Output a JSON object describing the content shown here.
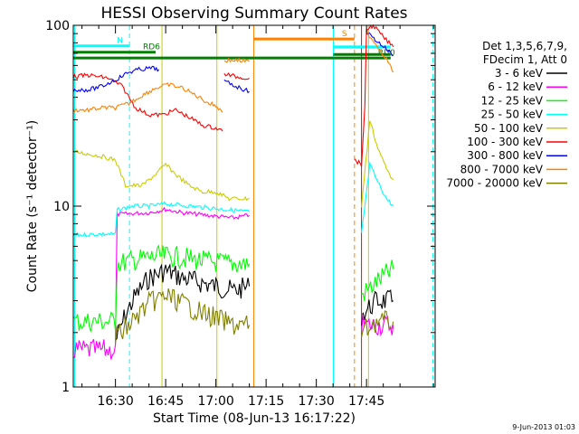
{
  "chart_data": {
    "type": "line",
    "title": "HESSI Observing Summary Count Rates",
    "ylabel": "Count Rate (s⁻¹ detector⁻¹)",
    "xlabel": "Start Time (08-Jun-13 16:17:22)",
    "footer_date": "9-Jun-2013 01:03",
    "y_scale": "log",
    "ylim": [
      1,
      100
    ],
    "xlim_min": [
      17.4,
      125.5
    ],
    "x_ticks": [
      {
        "min": 30,
        "label": "16:30"
      },
      {
        "min": 45,
        "label": "16:45"
      },
      {
        "min": 60,
        "label": "17:00"
      },
      {
        "min": 75,
        "label": "17:15"
      },
      {
        "min": 90,
        "label": "17:30"
      },
      {
        "min": 105,
        "label": "17:45"
      }
    ],
    "y_ticks": [
      {
        "v": 1,
        "label": "1"
      },
      {
        "v": 10,
        "label": "10"
      },
      {
        "v": 100,
        "label": "100"
      }
    ],
    "legend_title": [
      "Det 1,3,5,6,7,9,",
      "FDecim 1, Att 0"
    ],
    "legend_position": "right",
    "series": [
      {
        "name": "3 - 6 keV",
        "color": "#000000",
        "segments": [
          [
            [
              30,
              1.8
            ],
            [
              33,
              2.5
            ],
            [
              36,
              3.2
            ],
            [
              40,
              4.0
            ],
            [
              45,
              4.4
            ],
            [
              50,
              4.0
            ],
            [
              55,
              3.8
            ],
            [
              60,
              3.6
            ],
            [
              65,
              3.4
            ],
            [
              70,
              3.6
            ]
          ],
          [
            [
              103.5,
              2.5
            ],
            [
              108,
              3.0
            ],
            [
              113,
              3.0
            ]
          ]
        ]
      },
      {
        "name": "6 - 12 keV",
        "color": "#ff00ff",
        "segments": [
          [
            [
              17.4,
              1.6
            ],
            [
              30,
              1.6
            ],
            [
              30.5,
              9.0
            ],
            [
              40,
              9.2
            ],
            [
              45,
              9.6
            ],
            [
              50,
              9.2
            ],
            [
              55,
              9.0
            ],
            [
              60,
              8.8
            ],
            [
              65,
              8.6
            ],
            [
              70,
              8.9
            ]
          ],
          [
            [
              103.5,
              2.2
            ],
            [
              108,
              2.2
            ],
            [
              113,
              2.2
            ]
          ]
        ]
      },
      {
        "name": "12 - 25 keV",
        "color": "#00ff00",
        "segments": [
          [
            [
              17.4,
              2.3
            ],
            [
              30,
              2.3
            ],
            [
              30.5,
              4.8
            ],
            [
              35,
              5.0
            ],
            [
              40,
              5.2
            ],
            [
              45,
              5.3
            ],
            [
              50,
              5.2
            ],
            [
              55,
              5.0
            ],
            [
              60,
              4.9
            ],
            [
              65,
              4.8
            ],
            [
              70,
              4.8
            ]
          ],
          [
            [
              103.5,
              3.2
            ],
            [
              108,
              3.8
            ],
            [
              113,
              4.5
            ]
          ]
        ]
      },
      {
        "name": "25 - 50 keV",
        "color": "#00ffff",
        "segments": [
          [
            [
              17.4,
              6.9
            ],
            [
              25,
              7.0
            ],
            [
              30,
              7.0
            ],
            [
              30.5,
              9.5
            ],
            [
              35,
              10.0
            ],
            [
              40,
              10.0
            ],
            [
              45,
              10.3
            ],
            [
              50,
              10.1
            ],
            [
              55,
              9.9
            ],
            [
              60,
              9.7
            ],
            [
              65,
              9.5
            ],
            [
              70,
              9.3
            ]
          ],
          [
            [
              103.5,
              7.0
            ],
            [
              106,
              17
            ],
            [
              108,
              14
            ],
            [
              111,
              11
            ],
            [
              113,
              10
            ]
          ]
        ]
      },
      {
        "name": "50 - 100 keV",
        "color": "#cccc00",
        "segments": [
          [
            [
              17.4,
              20
            ],
            [
              25,
              19
            ],
            [
              30,
              18
            ],
            [
              33,
              13
            ],
            [
              38,
              13
            ],
            [
              42,
              15
            ],
            [
              45,
              17
            ],
            [
              48,
              15
            ],
            [
              52,
              13
            ],
            [
              56,
              12
            ],
            [
              60,
              12
            ],
            [
              64,
              11
            ],
            [
              68,
              11
            ],
            [
              70,
              11
            ]
          ],
          [
            [
              103.5,
              10
            ],
            [
              106,
              30
            ],
            [
              108,
              22
            ],
            [
              111,
              16
            ],
            [
              113,
              14
            ]
          ]
        ]
      },
      {
        "name": "100 - 300 keV",
        "color": "#ff0000",
        "segments": [
          [
            [
              17.4,
              52
            ],
            [
              22,
              53
            ],
            [
              28,
              51
            ],
            [
              32,
              46
            ],
            [
              36,
              35
            ],
            [
              40,
              32
            ],
            [
              44,
              32
            ],
            [
              48,
              34
            ],
            [
              52,
              31
            ],
            [
              56,
              28
            ],
            [
              60,
              27
            ],
            [
              62,
              26
            ]
          ],
          [
            [
              62.5,
              54
            ],
            [
              66,
              52
            ],
            [
              70,
              51
            ]
          ],
          [
            [
              101.5,
              18
            ],
            [
              103.5,
              17
            ],
            [
              104.5,
              35
            ],
            [
              105,
              95
            ],
            [
              107,
              100
            ],
            [
              110,
              86
            ],
            [
              113,
              76
            ]
          ]
        ]
      },
      {
        "name": "300 - 800 keV",
        "color": "#0000ff",
        "segments": [
          [
            [
              17.4,
              44
            ],
            [
              22,
              44
            ],
            [
              26,
              46
            ],
            [
              30,
              50
            ],
            [
              34,
              55
            ],
            [
              37,
              57
            ],
            [
              41,
              58
            ],
            [
              43,
              57
            ]
          ],
          [
            [
              62.5,
              49
            ],
            [
              66,
              46
            ],
            [
              70,
              43
            ]
          ],
          [
            [
              105,
              92
            ],
            [
              108,
              82
            ],
            [
              111,
              74
            ],
            [
              113,
              68
            ]
          ]
        ]
      },
      {
        "name": "800 - 7000 keV",
        "color": "#ff8000",
        "segments": [
          [
            [
              17.4,
              34
            ],
            [
              22,
              34
            ],
            [
              26,
              35
            ],
            [
              30,
              35
            ],
            [
              34,
              37
            ],
            [
              38,
              41
            ],
            [
              42,
              45
            ],
            [
              46,
              47
            ],
            [
              50,
              45
            ],
            [
              54,
              41
            ],
            [
              58,
              37
            ],
            [
              60,
              36
            ],
            [
              62,
              33
            ]
          ],
          [
            [
              62.5,
              64
            ],
            [
              66,
              64
            ],
            [
              70,
              63
            ]
          ],
          [
            [
              105,
              92
            ],
            [
              108,
              78
            ],
            [
              111,
              65
            ],
            [
              113,
              55
            ]
          ]
        ]
      },
      {
        "name": "7000 - 20000 keV",
        "color": "#808000",
        "segments": [
          [
            [
              30,
              1.9
            ],
            [
              33,
              2.1
            ],
            [
              36,
              2.4
            ],
            [
              40,
              2.9
            ],
            [
              45,
              3.2
            ],
            [
              50,
              2.9
            ],
            [
              55,
              2.6
            ],
            [
              60,
              2.4
            ],
            [
              65,
              2.2
            ],
            [
              70,
              2.2
            ]
          ],
          [
            [
              103.5,
              2.0
            ],
            [
              108,
              2.3
            ],
            [
              113,
              2.3
            ]
          ]
        ]
      }
    ],
    "state_bars": [
      {
        "label": "N",
        "color": "#00ffff",
        "v": 77,
        "from": 17.4,
        "to": 34.2
      },
      {
        "label": "RD0",
        "color": "#008000",
        "v": 66,
        "from": 17.4,
        "to": 112.2
      },
      {
        "label": "RD6",
        "color": "#008000",
        "v": 71,
        "from": 17.4,
        "to": 42.0
      },
      {
        "label": "S",
        "color": "#ff8000",
        "v": 84,
        "from": 71.3,
        "to": 101.4
      },
      {
        "label": "",
        "color": "#00ffff",
        "v": 76,
        "from": 95.1,
        "to": 112.2
      },
      {
        "label": "",
        "color": "#008000",
        "v": 69,
        "from": 95.1,
        "to": 112.2
      }
    ],
    "markers": [
      {
        "min": 17.8,
        "color": "#00ffff",
        "style": "solid"
      },
      {
        "min": 34.2,
        "color": "#00ffff",
        "style": "dash"
      },
      {
        "min": 43.9,
        "color": "#cccc00",
        "style": "solid"
      },
      {
        "min": 60.3,
        "color": "#cccc00",
        "style": "solid"
      },
      {
        "min": 71.3,
        "color": "#ff8000",
        "style": "solid"
      },
      {
        "min": 95.1,
        "color": "#00ffff",
        "style": "solid"
      },
      {
        "min": 101.4,
        "color": "#ff8000",
        "style": "dash"
      },
      {
        "min": 103.5,
        "color": "#ff0000",
        "style": "solid"
      },
      {
        "min": 105.6,
        "color": "#cccc00",
        "style": "solid"
      },
      {
        "min": 124.8,
        "color": "#00ffff",
        "style": "dash"
      }
    ]
  }
}
